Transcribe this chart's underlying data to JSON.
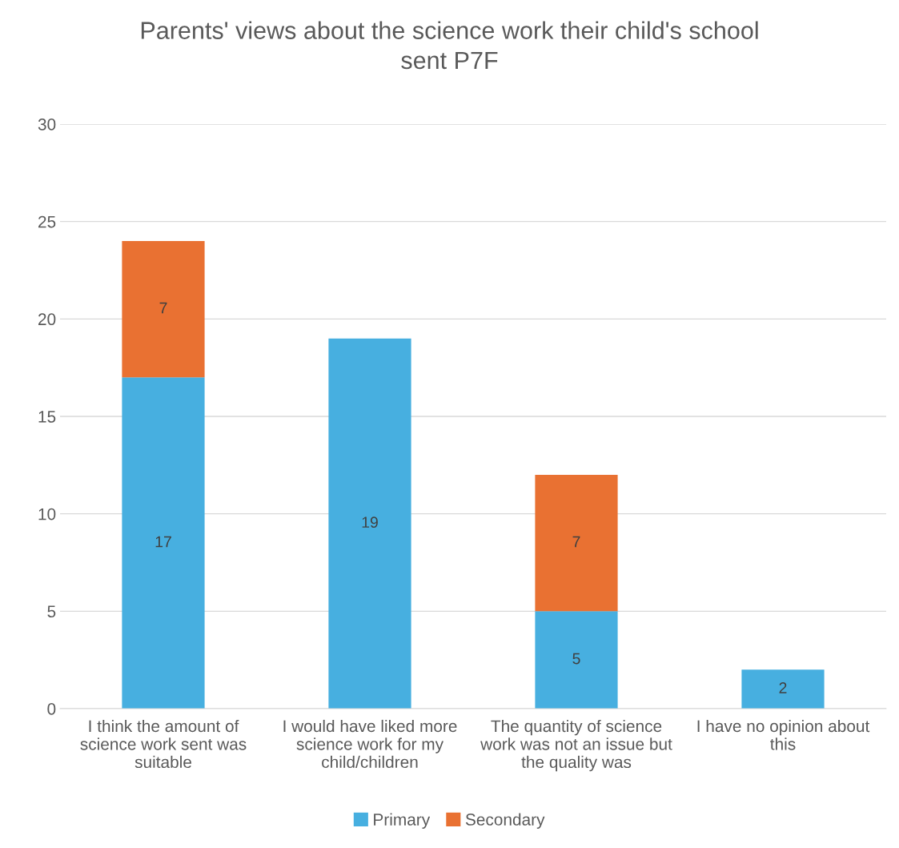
{
  "chart_data": {
    "type": "bar",
    "title": "Parents' views about the science work their child's school sent P7F",
    "stacked": true,
    "categories": [
      "I think the amount of science work sent was suitable",
      "I would have liked more science work for my child/children",
      "The quantity of science work was not an issue but the quality was",
      "I have no opinion about this"
    ],
    "series": [
      {
        "name": "Primary",
        "color": "#47afe0",
        "values": [
          17,
          19,
          5,
          2
        ]
      },
      {
        "name": "Secondary",
        "color": "#e97132",
        "values": [
          7,
          null,
          7,
          null
        ]
      }
    ],
    "ylim": [
      0,
      30
    ],
    "yticks": [
      0,
      5,
      10,
      15,
      20,
      25,
      30
    ],
    "grid": "y",
    "legend": "bottom",
    "data_labels": true
  }
}
